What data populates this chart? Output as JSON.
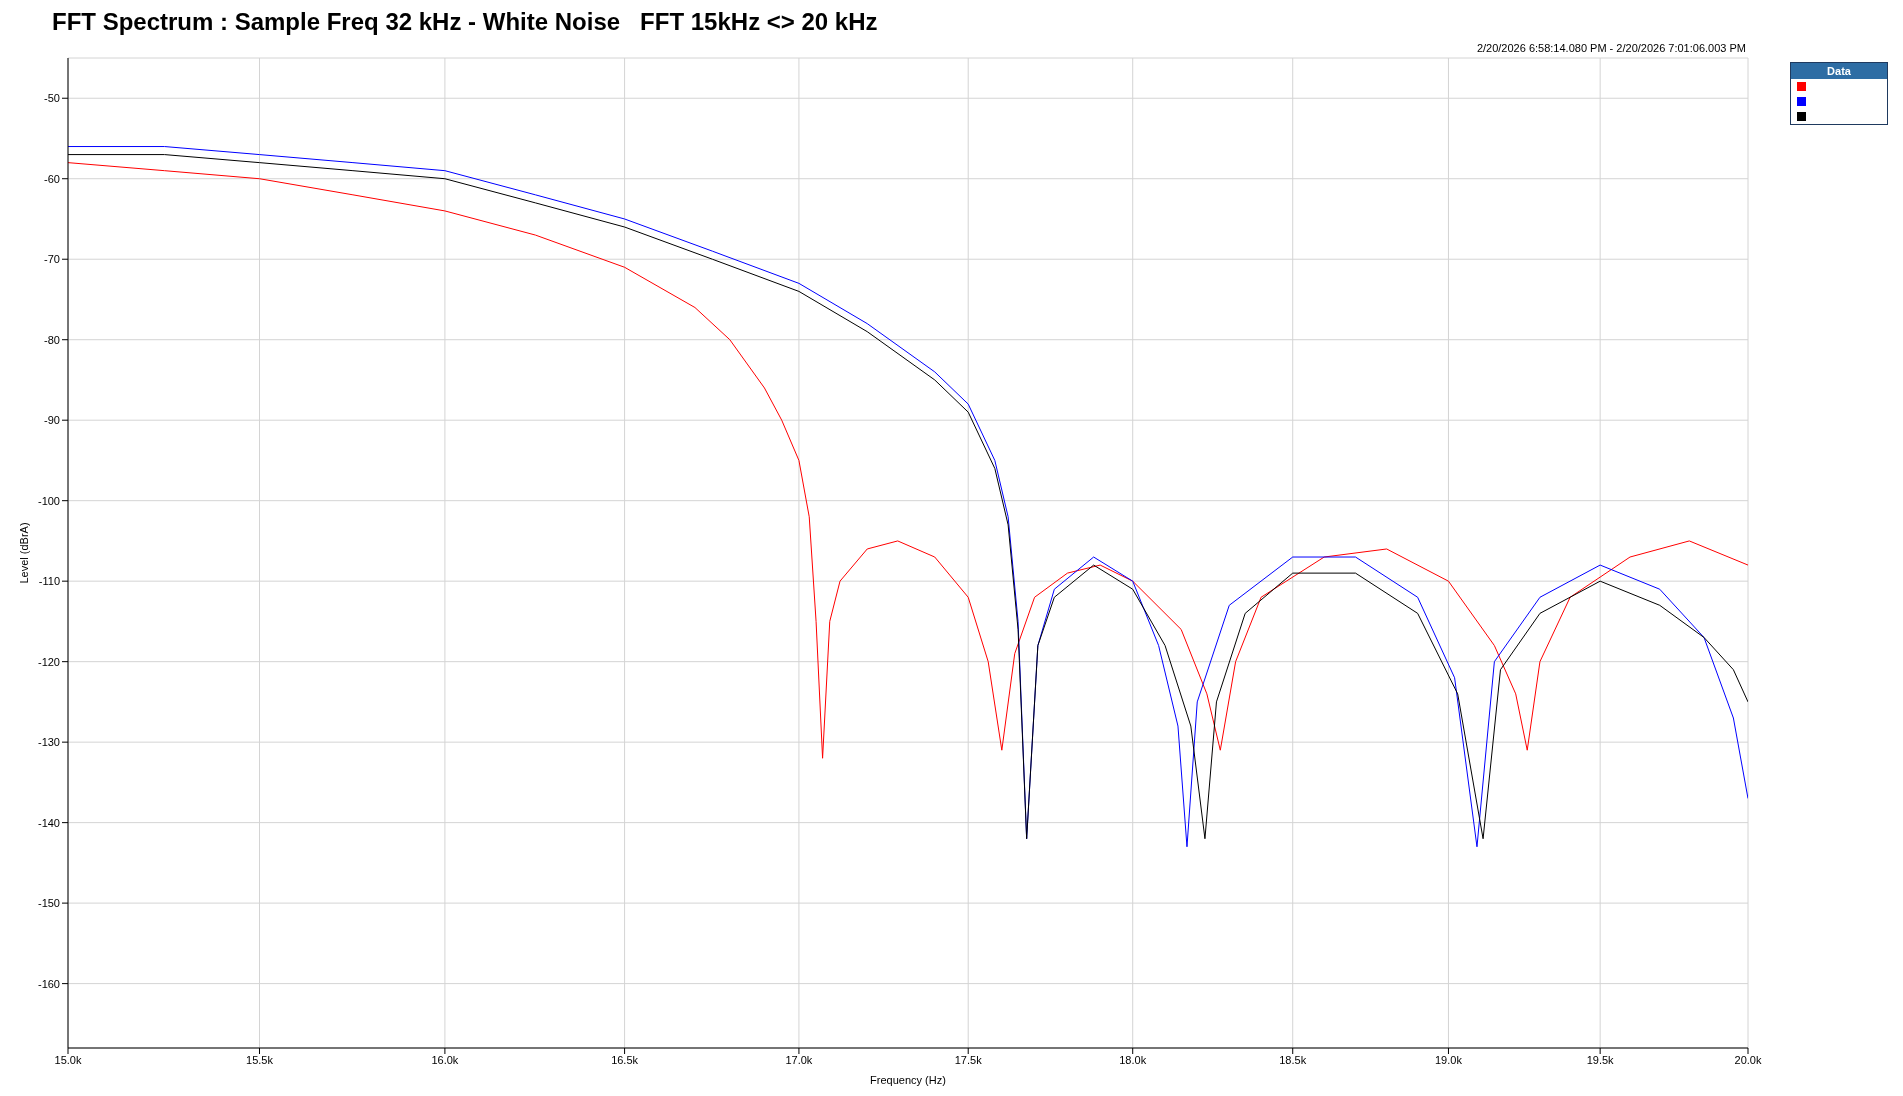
{
  "chart_data": {
    "type": "line",
    "title": "FFT Spectrum : Sample Freq 32 kHz - White Noise   FFT 15kHz <> 20 kHz",
    "subtitle": "2/20/2026 6:58:14.080 PM - 2/20/2026 7:01:06.003 PM",
    "xlabel": "Frequency (Hz)",
    "ylabel": "Level (dBrA)",
    "legend_title": "Data",
    "grid": true,
    "log": "x",
    "marker": "none",
    "line_style": "solid",
    "xlim": [
      15000,
      20000
    ],
    "xticks": [
      {
        "value": 15000,
        "label": "15.0k"
      },
      {
        "value": 15500,
        "label": "15.5k"
      },
      {
        "value": 16000,
        "label": "16.0k"
      },
      {
        "value": 16500,
        "label": "16.5k"
      },
      {
        "value": 17000,
        "label": "17.0k"
      },
      {
        "value": 17500,
        "label": "17.5k"
      },
      {
        "value": 18000,
        "label": "18.0k"
      },
      {
        "value": 18500,
        "label": "18.5k"
      },
      {
        "value": 19000,
        "label": "19.0k"
      },
      {
        "value": 19500,
        "label": "19.5k"
      },
      {
        "value": 20000,
        "label": "20.0k"
      }
    ],
    "ylim": [
      -168,
      -45
    ],
    "yticks": [
      -160,
      -150,
      -140,
      -130,
      -120,
      -110,
      -100,
      -90,
      -80,
      -70,
      -60,
      -50
    ],
    "series": [
      {
        "color": "#ff0000",
        "x": [
          15000,
          15250,
          15500,
          15750,
          16000,
          16250,
          16500,
          16700,
          16800,
          16900,
          16950,
          17000,
          17030,
          17050,
          17069,
          17090,
          17120,
          17200,
          17290,
          17400,
          17500,
          17560,
          17601,
          17640,
          17700,
          17800,
          17900,
          18000,
          18150,
          18230,
          18272,
          18320,
          18400,
          18600,
          18800,
          19000,
          19150,
          19220,
          19258,
          19300,
          19400,
          19600,
          19800,
          20000
        ],
        "values": [
          -58,
          -59,
          -60,
          -62,
          -64,
          -67,
          -71,
          -76,
          -80,
          -86,
          -90,
          -95,
          -102,
          -115,
          -132,
          -115,
          -110,
          -106,
          -105,
          -107,
          -112,
          -120,
          -131,
          -119,
          -112,
          -109,
          -108,
          -110,
          -116,
          -124,
          -131,
          -120,
          -112,
          -107,
          -106,
          -110,
          -118,
          -124,
          -131,
          -120,
          -112,
          -107,
          -105,
          -108
        ]
      },
      {
        "color": "#0000ff",
        "x": [
          15000,
          15250,
          15500,
          15750,
          16000,
          16250,
          16500,
          16750,
          17000,
          17200,
          17400,
          17500,
          17580,
          17620,
          17650,
          17676,
          17710,
          17760,
          17880,
          18000,
          18080,
          18140,
          18168,
          18200,
          18300,
          18500,
          18700,
          18900,
          19020,
          19093,
          19150,
          19300,
          19500,
          19700,
          19850,
          19950,
          20000
        ],
        "values": [
          -56,
          -56,
          -57,
          -58,
          -59,
          -62,
          -65,
          -69,
          -73,
          -78,
          -84,
          -88,
          -95,
          -102,
          -115,
          -142,
          -118,
          -111,
          -107,
          -110,
          -118,
          -128,
          -143,
          -125,
          -113,
          -107,
          -107,
          -112,
          -122,
          -143,
          -120,
          -112,
          -108,
          -111,
          -117,
          -127,
          -137
        ]
      },
      {
        "color": "#000000",
        "x": [
          15000,
          15250,
          15500,
          15750,
          16000,
          16250,
          16500,
          16750,
          17000,
          17200,
          17400,
          17500,
          17580,
          17620,
          17650,
          17676,
          17710,
          17760,
          17880,
          18000,
          18100,
          18180,
          18224,
          18260,
          18350,
          18500,
          18700,
          18900,
          19030,
          19113,
          19170,
          19300,
          19500,
          19700,
          19850,
          19950,
          20000
        ],
        "values": [
          -57,
          -57,
          -58,
          -59,
          -60,
          -63,
          -66,
          -70,
          -74,
          -79,
          -85,
          -89,
          -96,
          -103,
          -116,
          -142,
          -118,
          -112,
          -108,
          -111,
          -118,
          -128,
          -142,
          -125,
          -114,
          -109,
          -109,
          -114,
          -124,
          -142,
          -121,
          -114,
          -110,
          -113,
          -117,
          -121,
          -125
        ]
      }
    ]
  }
}
